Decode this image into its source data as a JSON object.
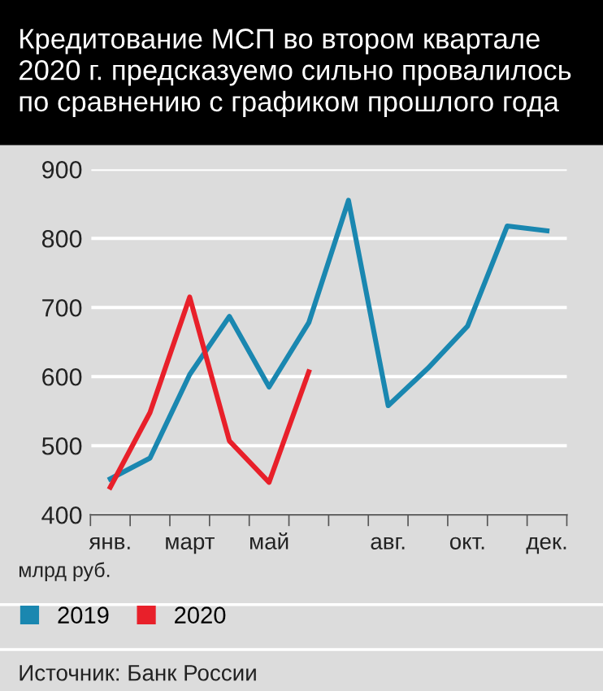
{
  "chart_data": {
    "type": "line",
    "title": "Кредитование МСП во втором квартале\n2020 г. предсказуемо сильно провалилось\nпо сравнению с графиком прошлого года",
    "ylabel": "млрд руб.",
    "categories": [
      "янв.",
      null,
      "март",
      null,
      "май",
      null,
      null,
      "авг.",
      null,
      "окт.",
      null,
      "дек."
    ],
    "series": [
      {
        "name": "2019",
        "color": "#1a87b0",
        "values": [
          452,
          482,
          603,
          687,
          585,
          678,
          855,
          558,
          612,
          673,
          818,
          811
        ]
      },
      {
        "name": "2020",
        "color": "#e8202a",
        "values": [
          440,
          548,
          715,
          507,
          447,
          607,
          null,
          null,
          null,
          null,
          null,
          null
        ]
      }
    ],
    "ylim": [
      400,
      900
    ],
    "yticks": [
      400,
      500,
      600,
      700,
      800,
      900
    ],
    "grid": "y",
    "legend": "bottom",
    "marker": "none",
    "line_style": "solid",
    "annotations": [
      "Источник: Банк России"
    ]
  }
}
